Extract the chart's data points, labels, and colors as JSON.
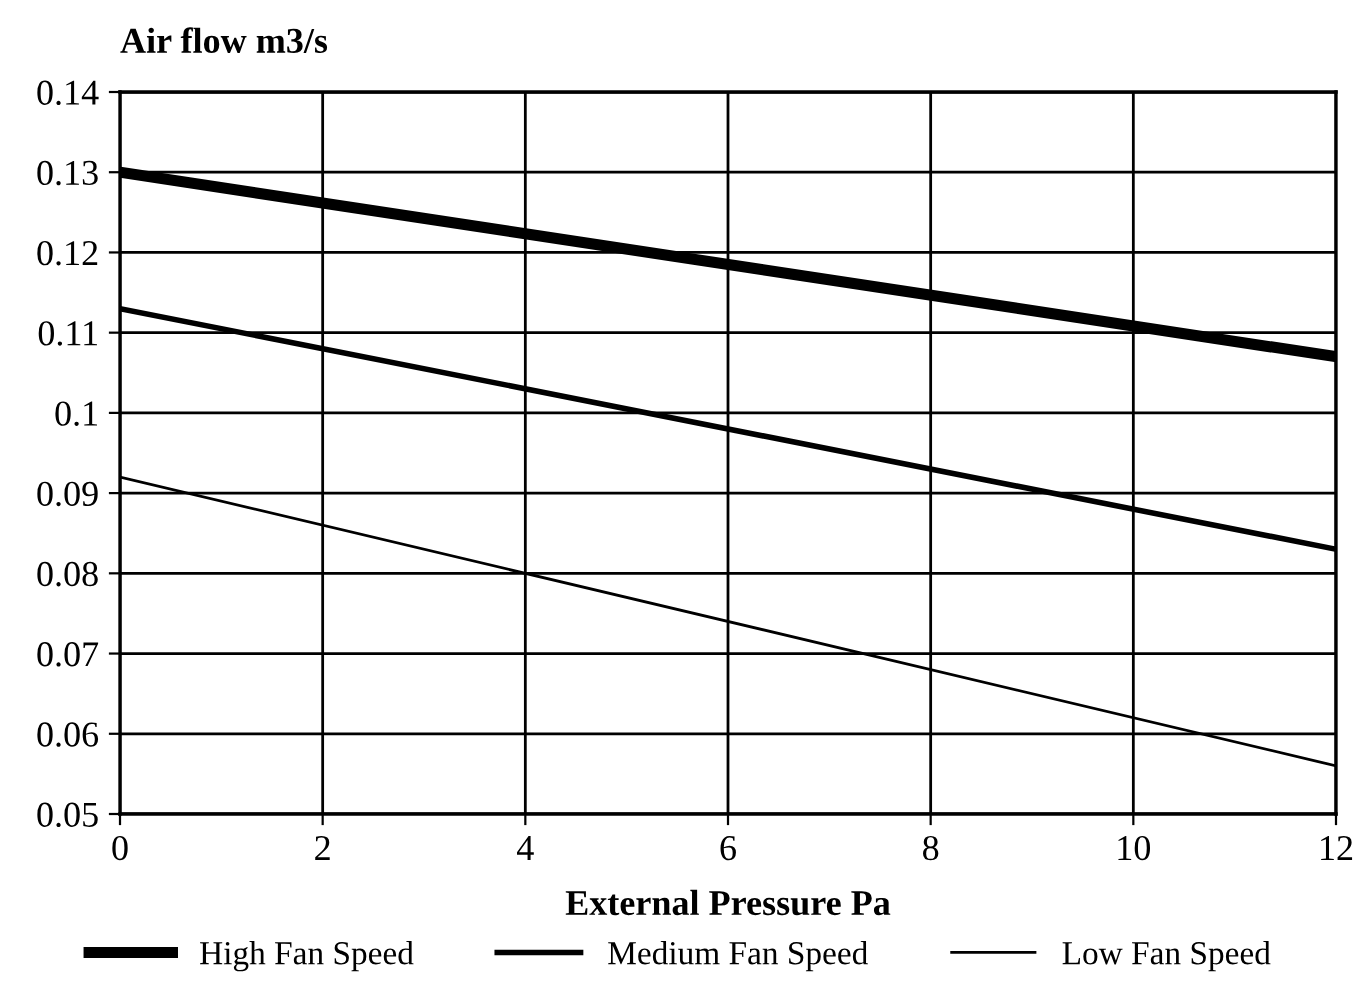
{
  "chart_data": {
    "type": "line",
    "ylabel": "Air flow m3/s",
    "xlabel": "External Pressure Pa",
    "x": [
      0,
      12
    ],
    "series": [
      {
        "name": "High Fan Speed",
        "color": "#000000",
        "values": [
          0.13,
          0.107
        ]
      },
      {
        "name": "Medium Fan Speed",
        "color": "#000000",
        "values": [
          0.113,
          0.083
        ]
      },
      {
        "name": "Low Fan Speed",
        "color": "#000000",
        "values": [
          0.092,
          0.056
        ]
      }
    ],
    "xlim": [
      0,
      12
    ],
    "xticks": [
      0,
      2,
      4,
      6,
      8,
      10,
      12
    ],
    "ylim": [
      0.05,
      0.14
    ],
    "yticks": [
      0.05,
      0.06,
      0.07,
      0.08,
      0.09,
      0.1,
      0.11,
      0.12,
      0.13,
      0.14
    ],
    "grid": true,
    "legend": "bottom",
    "line_style": "solid",
    "marker": "none"
  }
}
